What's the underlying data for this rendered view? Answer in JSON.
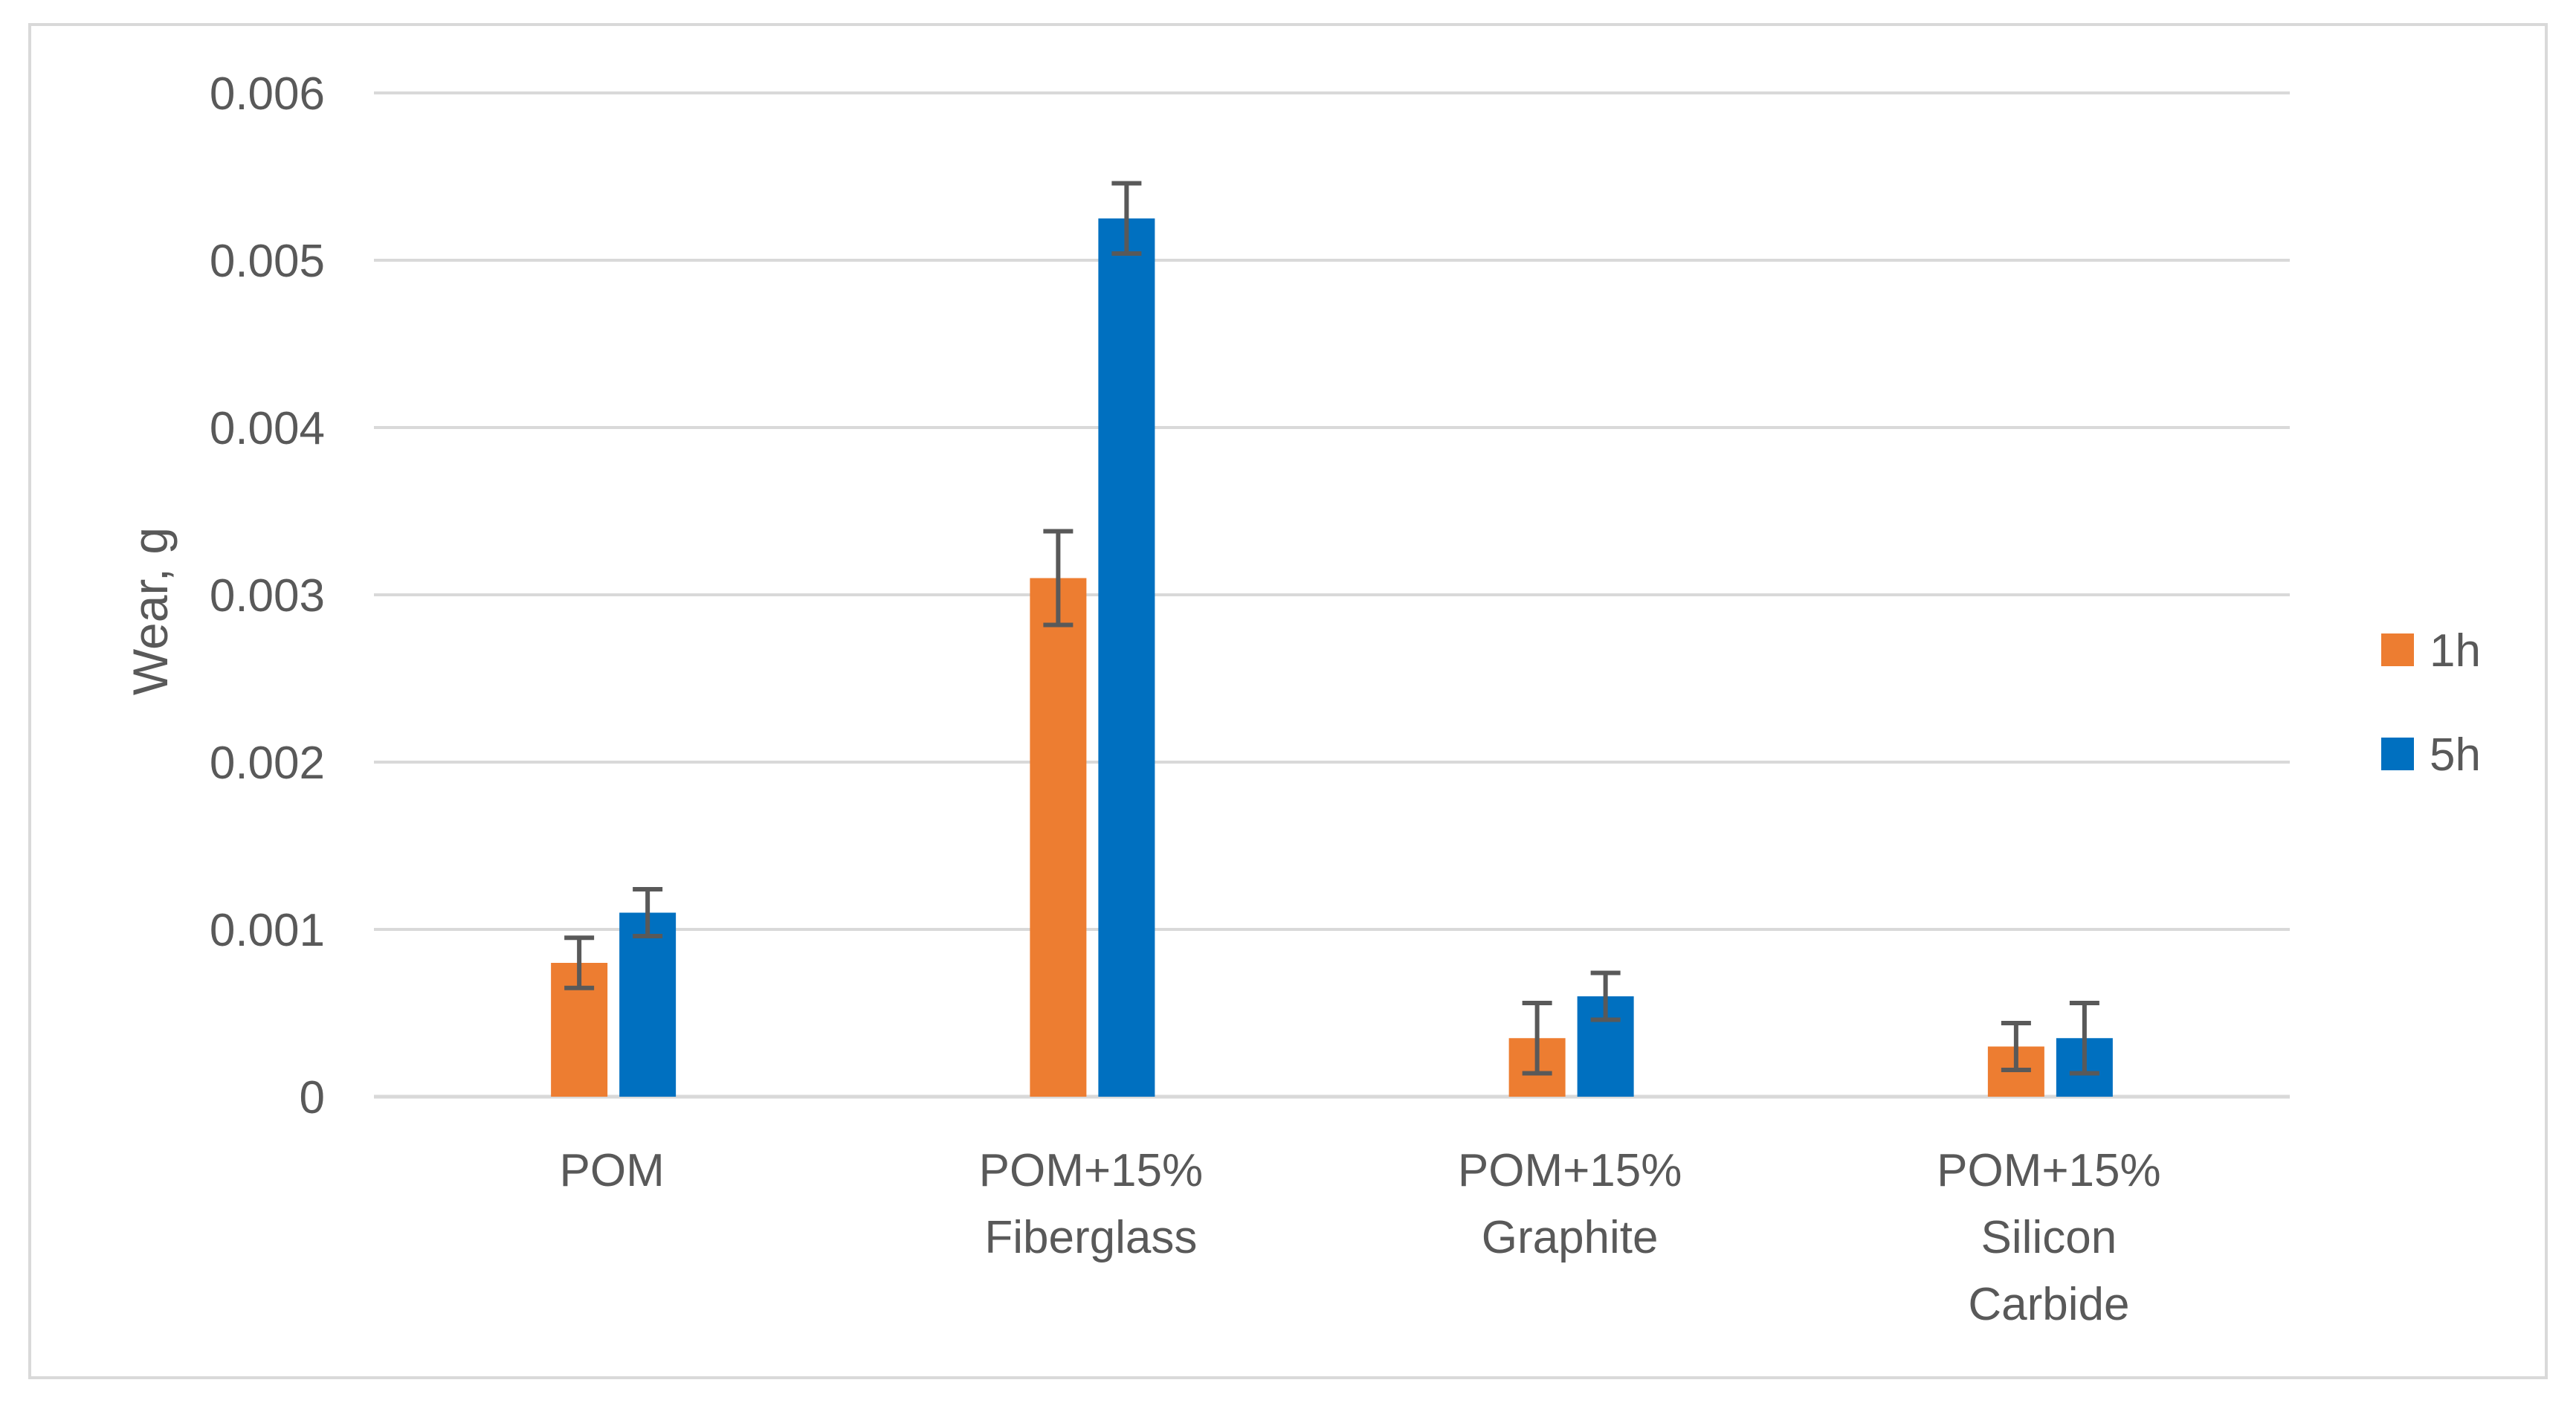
{
  "colors": {
    "series_1h": "#ED7D31",
    "series_5h": "#0070C0",
    "gridline": "#D9D9D9",
    "error_bar": "#595959",
    "text": "#595959",
    "frame": "#D9D9D9"
  },
  "chart_data": {
    "type": "bar",
    "title": "",
    "xlabel": "",
    "ylabel": "Wear, g",
    "ylim": [
      0,
      0.006
    ],
    "yticks": [
      {
        "value": 0,
        "label": "0"
      },
      {
        "value": 0.001,
        "label": "0.001"
      },
      {
        "value": 0.002,
        "label": "0.002"
      },
      {
        "value": 0.003,
        "label": "0.003"
      },
      {
        "value": 0.004,
        "label": "0.004"
      },
      {
        "value": 0.005,
        "label": "0.005"
      },
      {
        "value": 0.006,
        "label": "0.006"
      }
    ],
    "grid": true,
    "legend_position": "right",
    "categories": [
      [
        "POM"
      ],
      [
        "POM+15%",
        "Fiberglass"
      ],
      [
        "POM+15%",
        "Graphite"
      ],
      [
        "POM+15%",
        "Silicon",
        "Carbide"
      ]
    ],
    "series": [
      {
        "name": "1h",
        "color_key": "series_1h",
        "values": [
          0.0008,
          0.0031,
          0.00035,
          0.0003
        ],
        "errors": [
          0.00015,
          0.00028,
          0.00021,
          0.00014
        ]
      },
      {
        "name": "5h",
        "color_key": "series_5h",
        "values": [
          0.0011,
          0.00525,
          0.0006,
          0.00035
        ],
        "errors": [
          0.00014,
          0.00021,
          0.00014,
          0.00021
        ]
      }
    ]
  }
}
